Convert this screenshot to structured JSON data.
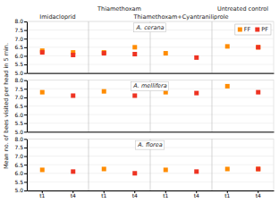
{
  "chart_data": [
    {
      "type": "scatter",
      "title": "A. cerana",
      "categories": [
        "t1",
        "t4",
        "t1",
        "t4",
        "t1",
        "t4",
        "t1",
        "t4"
      ],
      "groups": [
        "Imidacloprid",
        "Thiamethoxam",
        "Thiamethoxam+Cyantraniliprole",
        "Untreated control"
      ],
      "series": [
        {
          "name": "FF",
          "color": "#FF8C00",
          "marker": "square",
          "values": [
            6.3,
            6.2,
            6.2,
            6.5,
            6.15,
            null,
            6.55,
            6.5
          ]
        },
        {
          "name": "PF",
          "color": "#EE3322",
          "marker": "square",
          "values": [
            6.2,
            6.05,
            6.15,
            6.1,
            null,
            5.9,
            null,
            6.5
          ]
        }
      ],
      "ylim": [
        5.0,
        8.0
      ],
      "yticks": [
        {
          "value": 5.0,
          "label": "5.0"
        },
        {
          "value": 5.5,
          "label": "5.5"
        },
        {
          "value": 6.0,
          "label": "6.0"
        },
        {
          "value": 6.5,
          "label": "6.5"
        },
        {
          "value": 7.0,
          "label": "7.0"
        },
        {
          "value": 7.5,
          "label": "7.5"
        },
        {
          "value": 8.0,
          "label": "8.0"
        }
      ],
      "grid": true,
      "legend": "upper right",
      "tick_labels": "y"
    },
    {
      "type": "scatter",
      "title": "A. mellifera",
      "y_label": "Mean no. of bees visited per head in 5 min.",
      "categories": [
        "t1",
        "t4",
        "t1",
        "t4",
        "t1",
        "t4",
        "t1",
        "t4"
      ],
      "series": [
        {
          "name": "FF",
          "color": "#FF8C00",
          "marker": "square",
          "values": [
            7.3,
            null,
            7.35,
            null,
            7.3,
            null,
            7.65,
            null
          ]
        },
        {
          "name": "PF",
          "color": "#EE3322",
          "marker": "square",
          "values": [
            null,
            7.1,
            null,
            7.1,
            null,
            7.25,
            null,
            7.3
          ]
        }
      ],
      "ylim": [
        5.0,
        8.0
      ],
      "yticks": [
        {
          "value": 5.0,
          "label": "5.0"
        },
        {
          "value": 5.5,
          "label": "5.5"
        },
        {
          "value": 6.0,
          "label": "6.0"
        },
        {
          "value": 6.5,
          "label": "6.5"
        },
        {
          "value": 7.0,
          "label": "7.0"
        },
        {
          "value": 7.5,
          "label": "7.5"
        },
        {
          "value": 8.0,
          "label": "8.0"
        }
      ],
      "grid": true,
      "tick_labels": "y"
    },
    {
      "type": "scatter",
      "title": "A. florea",
      "categories": [
        "t1",
        "t4",
        "t1",
        "t4",
        "t1",
        "t4",
        "t1",
        "t4"
      ],
      "series": [
        {
          "name": "FF",
          "color": "#FF8C00",
          "marker": "square",
          "values": [
            6.2,
            null,
            6.25,
            null,
            6.2,
            null,
            6.25,
            6.25
          ]
        },
        {
          "name": "PF",
          "color": "#EE3322",
          "marker": "square",
          "values": [
            null,
            6.1,
            null,
            6.0,
            null,
            6.1,
            null,
            6.25
          ]
        }
      ],
      "ylim": [
        5.0,
        8.0
      ],
      "yticks": [
        {
          "value": 5.0,
          "label": "5.0"
        },
        {
          "value": 5.5,
          "label": "5.5"
        },
        {
          "value": 6.0,
          "label": "6.0"
        },
        {
          "value": 6.5,
          "label": "6.5"
        },
        {
          "value": 7.0,
          "label": "7.0"
        },
        {
          "value": 7.5,
          "label": "7.5"
        },
        {
          "value": 8.0,
          "label": "8.0"
        }
      ],
      "grid": true
    }
  ]
}
